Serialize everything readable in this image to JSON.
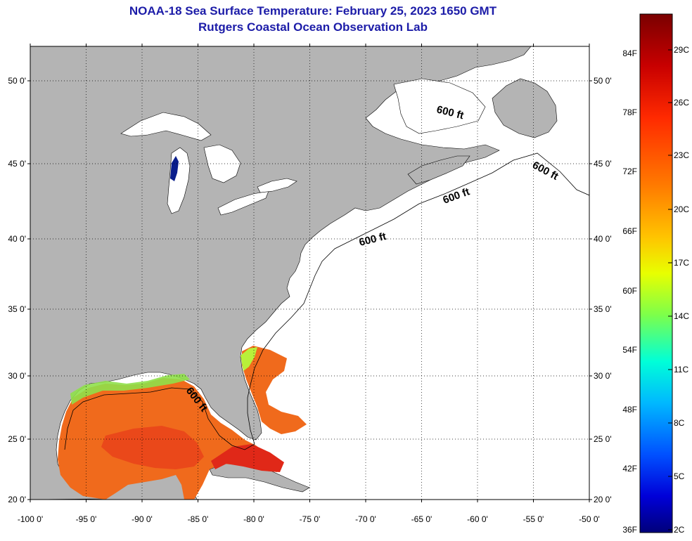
{
  "title": "NOAA-18 Sea Surface Temperature:  February 25, 2023 1650 GMT",
  "subtitle": "Rutgers Coastal Ocean Observation Lab",
  "lat_labels": [
    {
      "lat": 50,
      "label": "50 0'"
    },
    {
      "lat": 45,
      "label": "45 0'"
    },
    {
      "lat": 40,
      "label": "40 0'"
    },
    {
      "lat": 35,
      "label": "35 0'"
    },
    {
      "lat": 30,
      "label": "30 0'"
    },
    {
      "lat": 25,
      "label": "25 0'"
    },
    {
      "lat": 20,
      "label": "20 0'"
    }
  ],
  "lon_labels": [
    {
      "lon": -100,
      "label": "-100 0'"
    },
    {
      "lon": -95,
      "label": "-95 0'"
    },
    {
      "lon": -90,
      "label": "-90 0'"
    },
    {
      "lon": -85,
      "label": "-85 0'"
    },
    {
      "lon": -80,
      "label": "-80 0'"
    },
    {
      "lon": -75,
      "label": "-75 0'"
    },
    {
      "lon": -70,
      "label": "-70 0'"
    },
    {
      "lon": -65,
      "label": "-65 0'"
    },
    {
      "lon": -60,
      "label": "-60 0'"
    },
    {
      "lon": -55,
      "label": "-55 0'"
    },
    {
      "lon": -50,
      "label": "-50 0'"
    }
  ],
  "isobath_label": "600 ft",
  "colorbar": {
    "fahrenheit": [
      "84F",
      "78F",
      "72F",
      "66F",
      "60F",
      "54F",
      "48F",
      "42F",
      "36F"
    ],
    "celsius": [
      "29C",
      "26C",
      "23C",
      "20C",
      "17C",
      "14C",
      "11C",
      "8C",
      "5C",
      "2C"
    ],
    "colors": [
      "#7a0000",
      "#c80000",
      "#ff2a00",
      "#ff7a00",
      "#ffc400",
      "#e8ff00",
      "#7dff4a",
      "#00ffd8",
      "#00b8ff",
      "#0050ff",
      "#0000d8",
      "#00007a"
    ]
  },
  "colors": {
    "land": "#b4b4b4",
    "title": "#1c1ca8",
    "sst_warm": "#f06a1c"
  }
}
